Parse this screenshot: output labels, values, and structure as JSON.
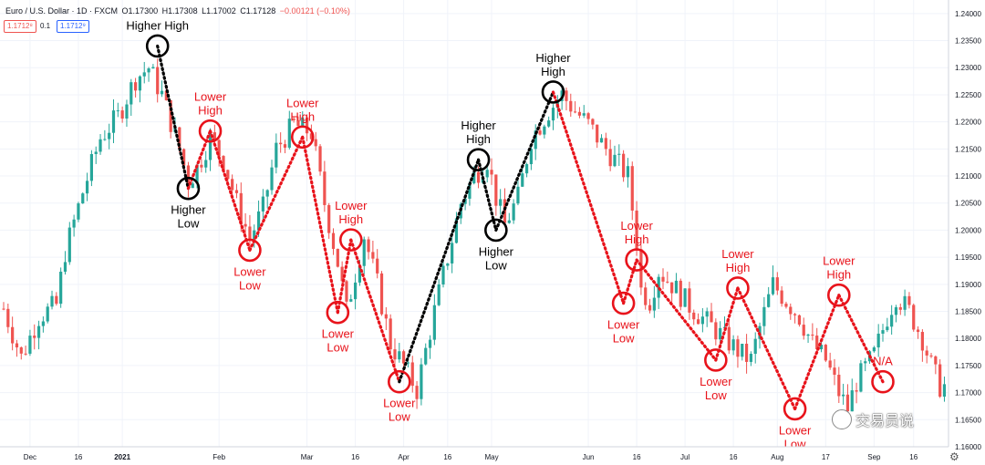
{
  "header": {
    "title": "Euro / U.S. Dollar · 1D · FXCM",
    "open": "O1.17300",
    "high": "H1.17308",
    "low": "L1.17002",
    "close": "C1.17128",
    "change": "−0.00121 (−0.10%)",
    "sell_price": "1.1712⁸",
    "spread": "0.1",
    "buy_price": "1.1712⁹"
  },
  "watermark": {
    "text": "交易员说"
  },
  "colors": {
    "up": "#26a69a",
    "down": "#ef5350",
    "annotation_red": "#e8131b",
    "annotation_black": "#000000",
    "grid": "#f0f3fa",
    "axis_text": "#131722"
  },
  "icons": {
    "settings": "gear-icon"
  },
  "chart_data": {
    "type": "candlestick",
    "title": "Euro / U.S. Dollar · 1D · FXCM",
    "xlabel": "",
    "ylabel": "",
    "ylim": [
      1.16,
      1.2425
    ],
    "grid": true,
    "legend": "none",
    "x_ticks": [
      {
        "label": "Dec",
        "idx": 6
      },
      {
        "label": "16",
        "idx": 17
      },
      {
        "label": "2021",
        "idx": 27
      },
      {
        "label": "Feb",
        "idx": 49
      },
      {
        "label": "Mar",
        "idx": 69
      },
      {
        "label": "16",
        "idx": 80
      },
      {
        "label": "Apr",
        "idx": 91
      },
      {
        "label": "16",
        "idx": 101
      },
      {
        "label": "May",
        "idx": 111
      },
      {
        "label": "Jun",
        "idx": 133
      },
      {
        "label": "16",
        "idx": 144
      },
      {
        "label": "Jul",
        "idx": 155
      },
      {
        "label": "16",
        "idx": 166
      },
      {
        "label": "Aug",
        "idx": 176
      },
      {
        "label": "17",
        "idx": 187
      },
      {
        "label": "Sep",
        "idx": 198
      },
      {
        "label": "16",
        "idx": 207
      }
    ],
    "y_ticks": [
      "1.24000",
      "1.23500",
      "1.23000",
      "1.22500",
      "1.22000",
      "1.21500",
      "1.21000",
      "1.20500",
      "1.20000",
      "1.19500",
      "1.19000",
      "1.18500",
      "1.18000",
      "1.17500",
      "1.17000",
      "1.16500",
      "1.16000"
    ],
    "price_path": [
      [
        0,
        1.1855
      ],
      [
        4,
        1.1765
      ],
      [
        8,
        1.184
      ],
      [
        12,
        1.1862
      ],
      [
        14,
        1.196
      ],
      [
        18,
        1.207
      ],
      [
        22,
        1.217
      ],
      [
        26,
        1.221
      ],
      [
        30,
        1.228
      ],
      [
        33,
        1.23
      ],
      [
        36,
        1.225
      ],
      [
        40,
        1.215
      ],
      [
        42,
        1.209
      ],
      [
        44,
        1.2115
      ],
      [
        47,
        1.217
      ],
      [
        50,
        1.213
      ],
      [
        53,
        1.205
      ],
      [
        56,
        1.1985
      ],
      [
        59,
        1.204
      ],
      [
        62,
        1.215
      ],
      [
        66,
        1.2195
      ],
      [
        70,
        1.218
      ],
      [
        73,
        1.205
      ],
      [
        76,
        1.194
      ],
      [
        78,
        1.185
      ],
      [
        80,
        1.192
      ],
      [
        82,
        1.199
      ],
      [
        85,
        1.19
      ],
      [
        88,
        1.179
      ],
      [
        91,
        1.175
      ],
      [
        94,
        1.1705
      ],
      [
        98,
        1.185
      ],
      [
        101,
        1.195
      ],
      [
        104,
        1.205
      ],
      [
        107,
        1.21
      ],
      [
        110,
        1.213
      ],
      [
        112,
        1.206
      ],
      [
        114,
        1.201
      ],
      [
        117,
        1.206
      ],
      [
        120,
        1.217
      ],
      [
        124,
        1.222
      ],
      [
        127,
        1.225
      ],
      [
        130,
        1.222
      ],
      [
        133,
        1.2195
      ],
      [
        136,
        1.216
      ],
      [
        139,
        1.213
      ],
      [
        142,
        1.21
      ],
      [
        144,
        1.198
      ],
      [
        145,
        1.189
      ],
      [
        147,
        1.187
      ],
      [
        149,
        1.1925
      ],
      [
        152,
        1.19
      ],
      [
        156,
        1.186
      ],
      [
        160,
        1.183
      ],
      [
        164,
        1.18
      ],
      [
        168,
        1.177
      ],
      [
        170,
        1.176
      ],
      [
        172,
        1.182
      ],
      [
        175,
        1.19
      ],
      [
        178,
        1.187
      ],
      [
        181,
        1.184
      ],
      [
        184,
        1.179
      ],
      [
        187,
        1.176
      ],
      [
        190,
        1.17
      ],
      [
        192,
        1.167
      ],
      [
        194,
        1.172
      ],
      [
        198,
        1.177
      ],
      [
        201,
        1.184
      ],
      [
        203,
        1.188
      ],
      [
        206,
        1.185
      ],
      [
        209,
        1.18
      ],
      [
        211,
        1.175
      ],
      [
        213,
        1.1712
      ]
    ],
    "swings": [
      {
        "idx": 35,
        "price": 1.234,
        "label": "Higher High",
        "color": "black",
        "pos": "above"
      },
      {
        "idx": 42,
        "price": 1.2077,
        "label": "Higher Low",
        "color": "black",
        "pos": "below"
      },
      {
        "idx": 47,
        "price": 1.2183,
        "label": "Lower High",
        "color": "red",
        "pos": "above"
      },
      {
        "idx": 56,
        "price": 1.1963,
        "label": "Lower Low",
        "color": "red",
        "pos": "below"
      },
      {
        "idx": 68,
        "price": 1.2172,
        "label": "Lower High",
        "color": "red",
        "pos": "above"
      },
      {
        "idx": 76,
        "price": 1.1848,
        "label": "Lower Low",
        "color": "red",
        "pos": "below"
      },
      {
        "idx": 79,
        "price": 1.1982,
        "label": "Lower High",
        "color": "red",
        "pos": "above"
      },
      {
        "idx": 90,
        "price": 1.172,
        "label": "Lower Low",
        "color": "red",
        "pos": "below"
      },
      {
        "idx": 108,
        "price": 1.213,
        "label": "Higher High",
        "color": "black",
        "pos": "above"
      },
      {
        "idx": 112,
        "price": 1.2,
        "label": "Higher Low",
        "color": "black",
        "pos": "below"
      },
      {
        "idx": 125,
        "price": 1.2255,
        "label": "Higher High",
        "color": "black",
        "pos": "above"
      },
      {
        "idx": 141,
        "price": 1.1865,
        "label": "Lower Low",
        "color": "red",
        "pos": "below"
      },
      {
        "idx": 144,
        "price": 1.1945,
        "label": "Lower High",
        "color": "red",
        "pos": "above"
      },
      {
        "idx": 162,
        "price": 1.176,
        "label": "Lower Low",
        "color": "red",
        "pos": "below"
      },
      {
        "idx": 167,
        "price": 1.1893,
        "label": "Lower High",
        "color": "red",
        "pos": "above"
      },
      {
        "idx": 180,
        "price": 1.167,
        "label": "Lower Low",
        "color": "red",
        "pos": "below"
      },
      {
        "idx": 190,
        "price": 1.188,
        "label": "Lower High",
        "color": "red",
        "pos": "above"
      },
      {
        "idx": 200,
        "price": 1.172,
        "label": "N/A",
        "color": "red",
        "pos": "above"
      }
    ],
    "segments": [
      {
        "from": 0,
        "to": 1,
        "color": "black"
      },
      {
        "from": 1,
        "to": 2,
        "color": "red"
      },
      {
        "from": 2,
        "to": 3,
        "color": "red"
      },
      {
        "from": 3,
        "to": 4,
        "color": "red"
      },
      {
        "from": 4,
        "to": 5,
        "color": "red"
      },
      {
        "from": 5,
        "to": 6,
        "color": "red"
      },
      {
        "from": 6,
        "to": 7,
        "color": "red"
      },
      {
        "from": 7,
        "to": 8,
        "color": "black"
      },
      {
        "from": 8,
        "to": 9,
        "color": "black"
      },
      {
        "from": 9,
        "to": 10,
        "color": "black"
      },
      {
        "from": 10,
        "to": 11,
        "color": "red"
      },
      {
        "from": 11,
        "to": 12,
        "color": "red"
      },
      {
        "from": 12,
        "to": 13,
        "color": "red"
      },
      {
        "from": 13,
        "to": 14,
        "color": "red"
      },
      {
        "from": 14,
        "to": 15,
        "color": "red"
      },
      {
        "from": 15,
        "to": 16,
        "color": "red"
      },
      {
        "from": 16,
        "to": 17,
        "color": "red"
      }
    ]
  }
}
